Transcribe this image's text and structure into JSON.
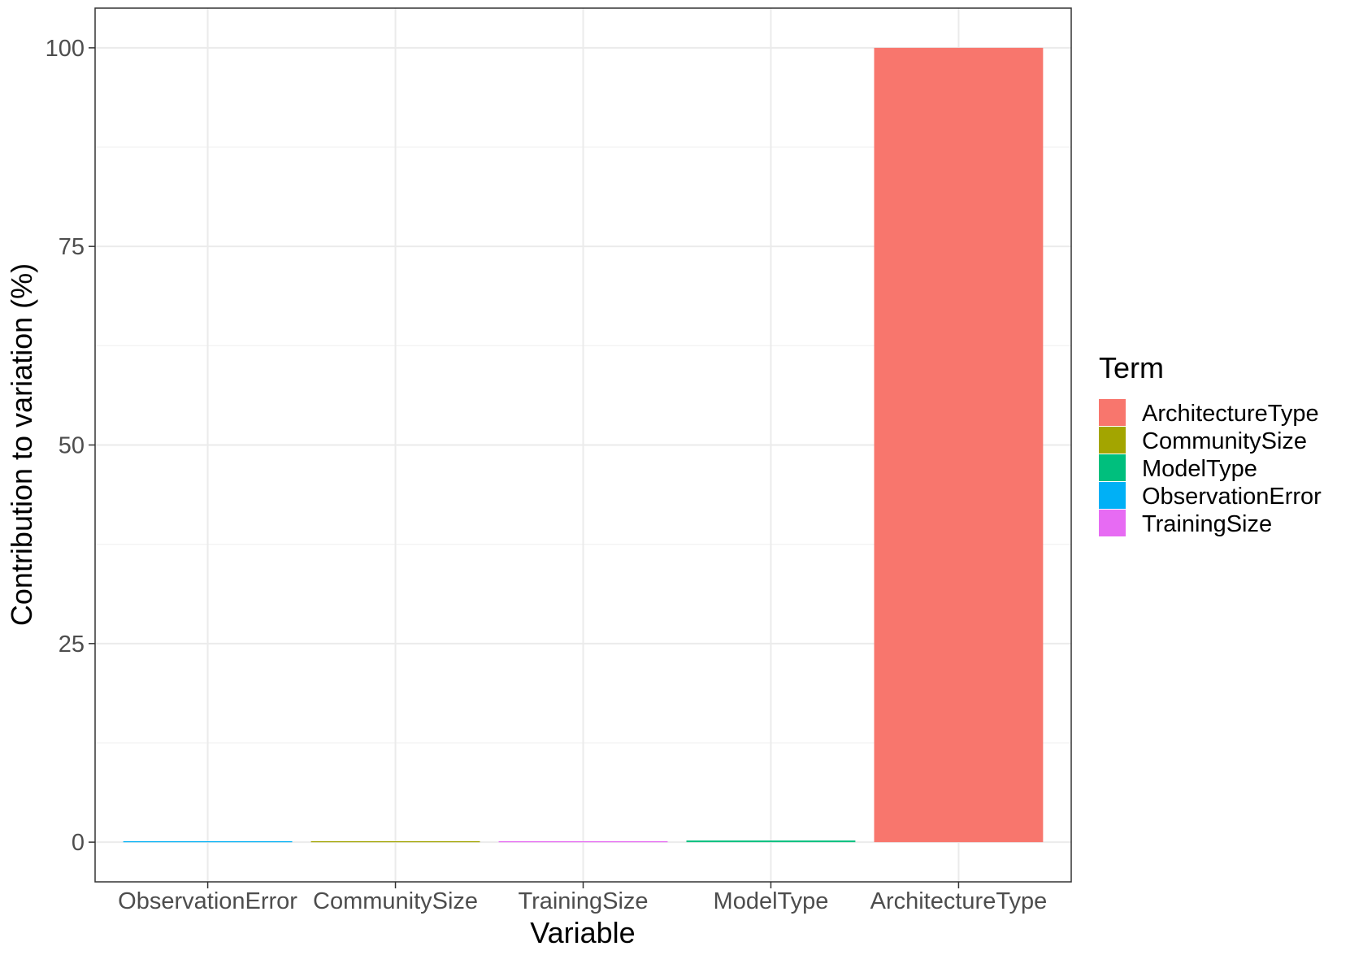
{
  "chart_data": {
    "type": "bar",
    "categories": [
      "ObservationError",
      "CommunitySize",
      "TrainingSize",
      "ModelType",
      "ArchitectureType"
    ],
    "values": [
      0.05,
      0.05,
      0.05,
      0.2,
      100
    ],
    "fill_by_term": [
      "ObservationError",
      "CommunitySize",
      "TrainingSize",
      "ModelType",
      "ArchitectureType"
    ],
    "title": "",
    "xlabel": "Variable",
    "ylabel": "Contribution to variation (%)",
    "ylim": [
      -5,
      105
    ],
    "yticks": [
      0,
      25,
      50,
      75,
      100
    ],
    "grid": true,
    "legend": {
      "title": "Term",
      "placement": "right",
      "entries": [
        {
          "label": "ArchitectureType",
          "color": "#F8766D"
        },
        {
          "label": "CommunitySize",
          "color": "#A3A500"
        },
        {
          "label": "ModelType",
          "color": "#00BF7D"
        },
        {
          "label": "ObservationError",
          "color": "#00B0F6"
        },
        {
          "label": "TrainingSize",
          "color": "#E76BF3"
        }
      ]
    }
  }
}
